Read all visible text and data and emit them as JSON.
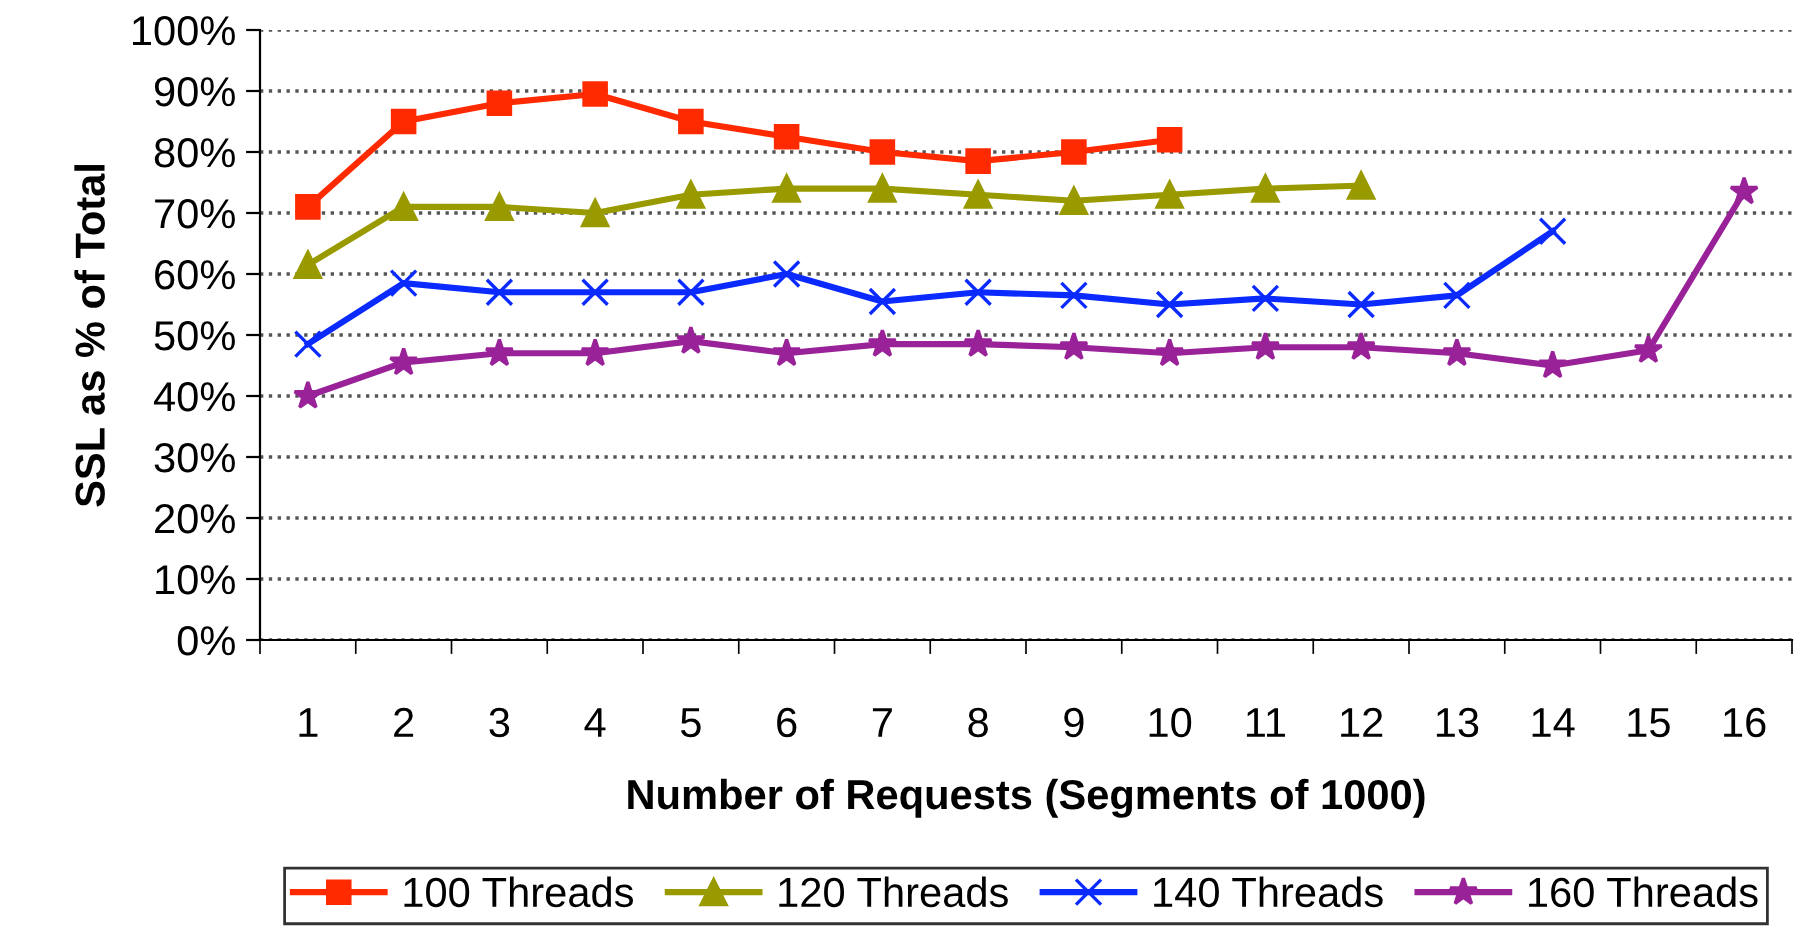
{
  "chart_data": {
    "type": "line",
    "xlabel": "Number of Requests (Segments of 1000)",
    "ylabel": "SSL as % of Total",
    "categories": [
      "1",
      "2",
      "3",
      "4",
      "5",
      "6",
      "7",
      "8",
      "9",
      "10",
      "11",
      "12",
      "13",
      "14",
      "15",
      "16"
    ],
    "ylim": [
      0,
      100
    ],
    "yticks": [
      {
        "value": 0,
        "label": "0%"
      },
      {
        "value": 10,
        "label": "10%"
      },
      {
        "value": 20,
        "label": "20%"
      },
      {
        "value": 30,
        "label": "30%"
      },
      {
        "value": 40,
        "label": "40%"
      },
      {
        "value": 50,
        "label": "50%"
      },
      {
        "value": 60,
        "label": "60%"
      },
      {
        "value": 70,
        "label": "70%"
      },
      {
        "value": 80,
        "label": "80%"
      },
      {
        "value": 90,
        "label": "90%"
      },
      {
        "value": 100,
        "label": "100%"
      }
    ],
    "grid": "y",
    "legend": "bottom",
    "series": [
      {
        "name": "100 Threads",
        "color": "#ff2a00",
        "marker": "square",
        "values": [
          71,
          85,
          88,
          89.5,
          85,
          82.5,
          80,
          78.5,
          80,
          82,
          null,
          null,
          null,
          null,
          null,
          null
        ]
      },
      {
        "name": "120 Threads",
        "color": "#999900",
        "marker": "triangle",
        "values": [
          61.5,
          71,
          71,
          70,
          73,
          74,
          74,
          73,
          72,
          73,
          74,
          74.5,
          null,
          null,
          null,
          null
        ]
      },
      {
        "name": "140 Threads",
        "color": "#0a2aff",
        "marker": "cross",
        "values": [
          48.5,
          58.5,
          57,
          57,
          57,
          60,
          55.5,
          57,
          56.5,
          55,
          56,
          55,
          56.5,
          67,
          null,
          null
        ]
      },
      {
        "name": "160 Threads",
        "color": "#992299",
        "marker": "star",
        "values": [
          40,
          45.5,
          47,
          47,
          49,
          47,
          48.5,
          48.5,
          48,
          47,
          48,
          48,
          47,
          45,
          47.5,
          73.5
        ]
      }
    ]
  }
}
